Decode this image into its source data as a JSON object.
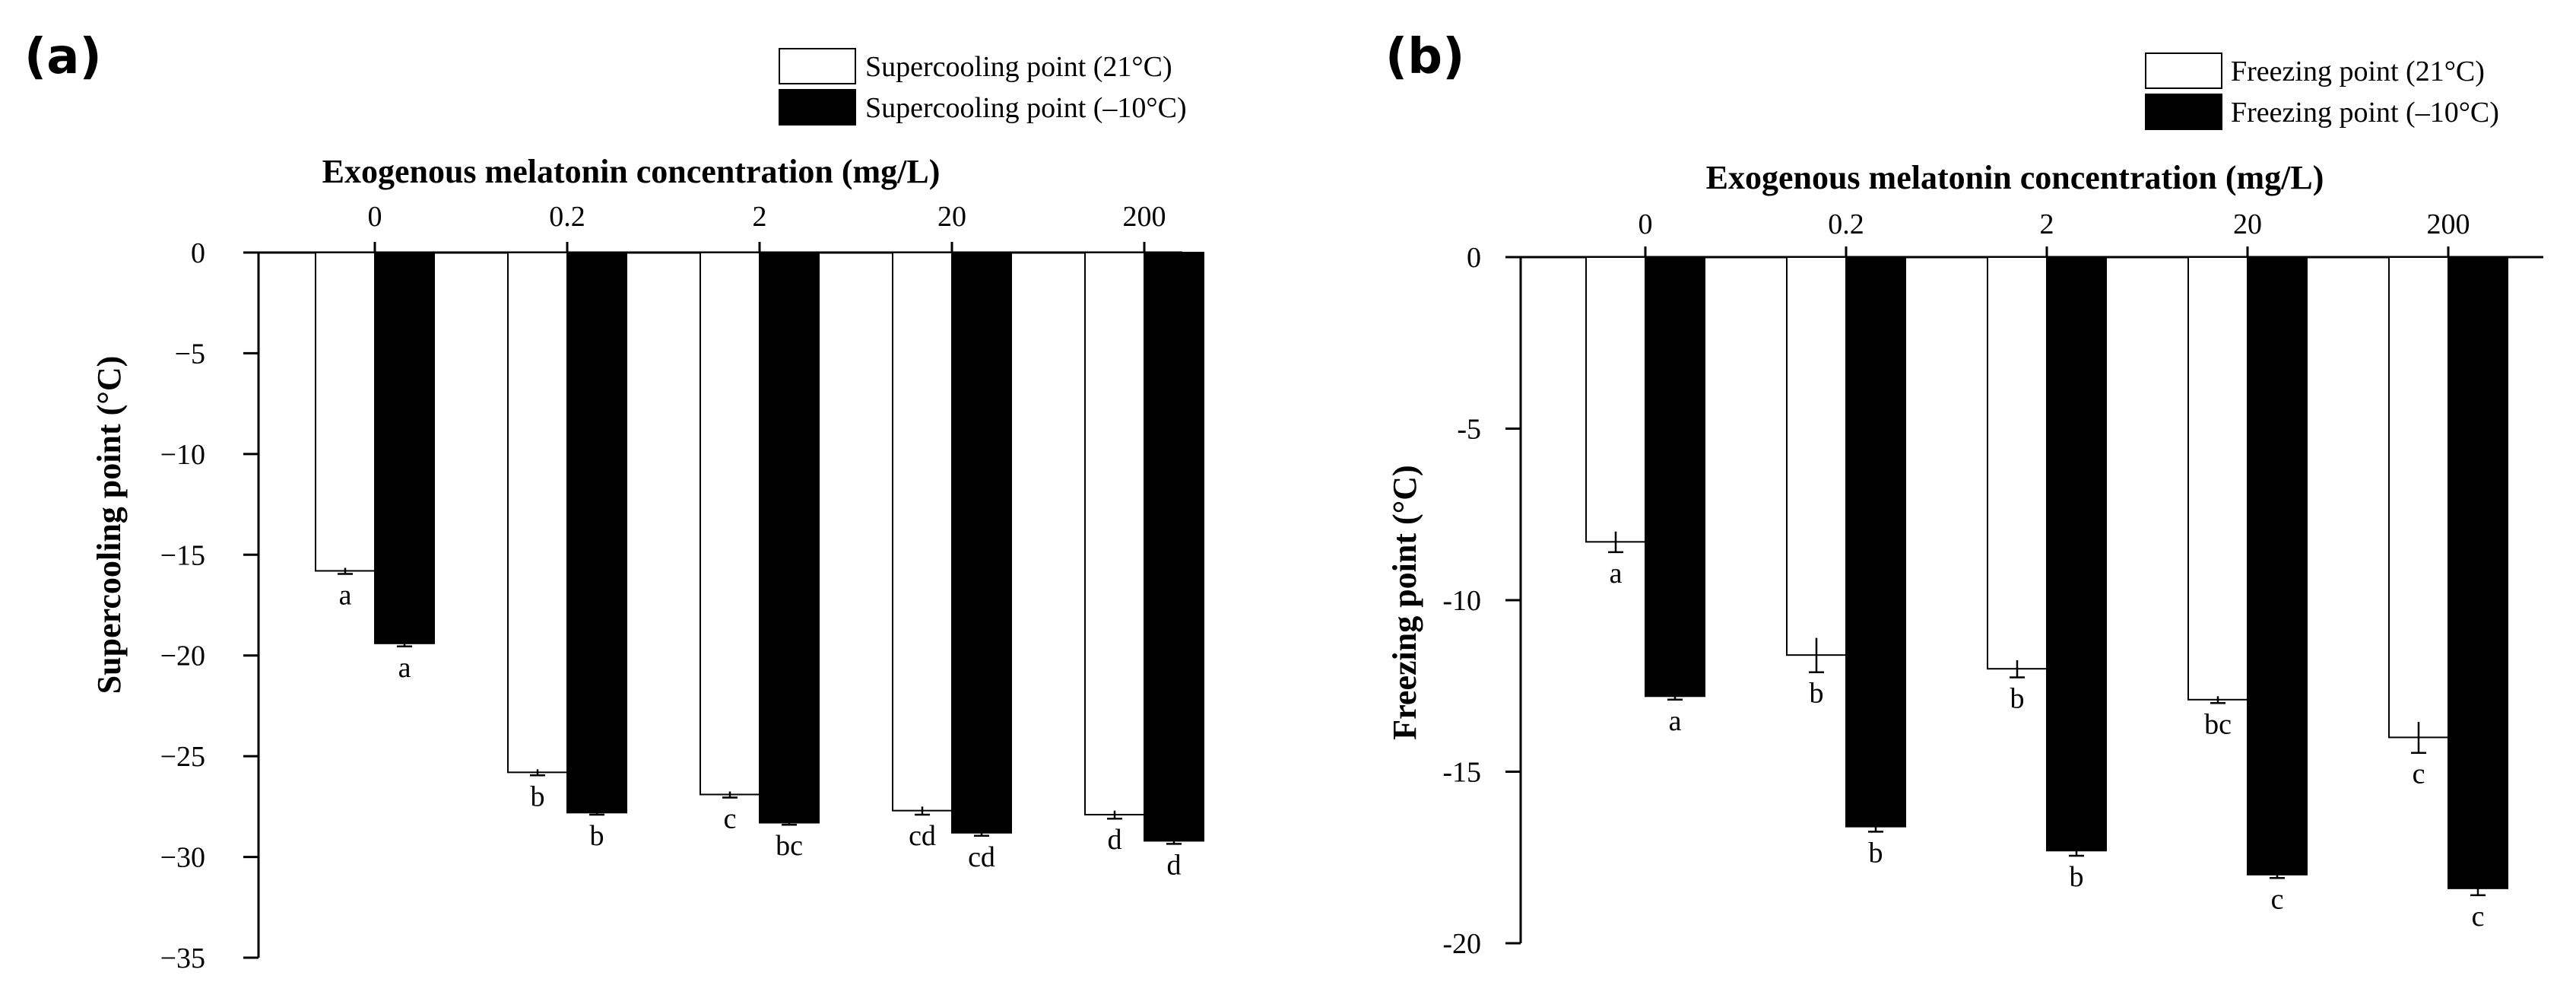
{
  "chart_data": [
    {
      "panel_label": "(a)",
      "type": "bar",
      "xlabel": "Exogenous melatonin concentration (mg/L)",
      "ylabel": "Supercooling point (°C)",
      "categories": [
        "0",
        "0.2",
        "2",
        "20",
        "200"
      ],
      "ylim": [
        -35,
        0
      ],
      "yticks": [
        0,
        -5,
        -10,
        -15,
        -20,
        -25,
        -30,
        -35
      ],
      "ytick_labels": [
        "0",
        "−5",
        "−10",
        "−15",
        "−20",
        "−25",
        "−30",
        "−35"
      ],
      "xaxis_position": "top",
      "grid": false,
      "legend_position": "top-right",
      "series": [
        {
          "name": "Supercooling point  (21°C)",
          "color": "#ffffff",
          "values": [
            -15.8,
            -25.8,
            -26.9,
            -27.7,
            -27.9
          ],
          "errors": [
            0.15,
            0.15,
            0.15,
            0.2,
            0.2
          ],
          "labels": [
            "a",
            "b",
            "c",
            "cd",
            "d"
          ]
        },
        {
          "name": "Supercooling point  (–10°C)",
          "color": "#000000",
          "values": [
            -19.4,
            -27.8,
            -28.3,
            -28.8,
            -29.2
          ],
          "errors": [
            0.15,
            0.1,
            0.1,
            0.15,
            0.15
          ],
          "labels": [
            "a",
            "b",
            "bc",
            "cd",
            "d"
          ]
        }
      ]
    },
    {
      "panel_label": "(b)",
      "type": "bar",
      "xlabel": "Exogenous melatonin concentration (mg/L)",
      "ylabel": "Freezing point (°C)",
      "categories": [
        "0",
        "0.2",
        "2",
        "20",
        "200"
      ],
      "ylim": [
        -20,
        0
      ],
      "yticks": [
        0,
        -5,
        -10,
        -15,
        -20
      ],
      "ytick_labels": [
        "0",
        "-5",
        "-10",
        "-15",
        "-20"
      ],
      "xaxis_position": "top",
      "grid": false,
      "legend_position": "top-right",
      "series": [
        {
          "name": "Freezing point (21°C)",
          "color": "#ffffff",
          "values": [
            -8.3,
            -11.6,
            -12.0,
            -12.9,
            -14.0
          ],
          "errors": [
            0.3,
            0.5,
            0.25,
            0.1,
            0.45
          ],
          "labels": [
            "a",
            "b",
            "b",
            "bc",
            "c"
          ]
        },
        {
          "name": "Freezing point (–10°C)",
          "color": "#000000",
          "values": [
            -12.8,
            -16.6,
            -17.3,
            -18.0,
            -18.4
          ],
          "errors": [
            0.1,
            0.15,
            0.15,
            0.1,
            0.2
          ],
          "labels": [
            "a",
            "b",
            "b",
            "c",
            "c"
          ]
        }
      ]
    }
  ]
}
